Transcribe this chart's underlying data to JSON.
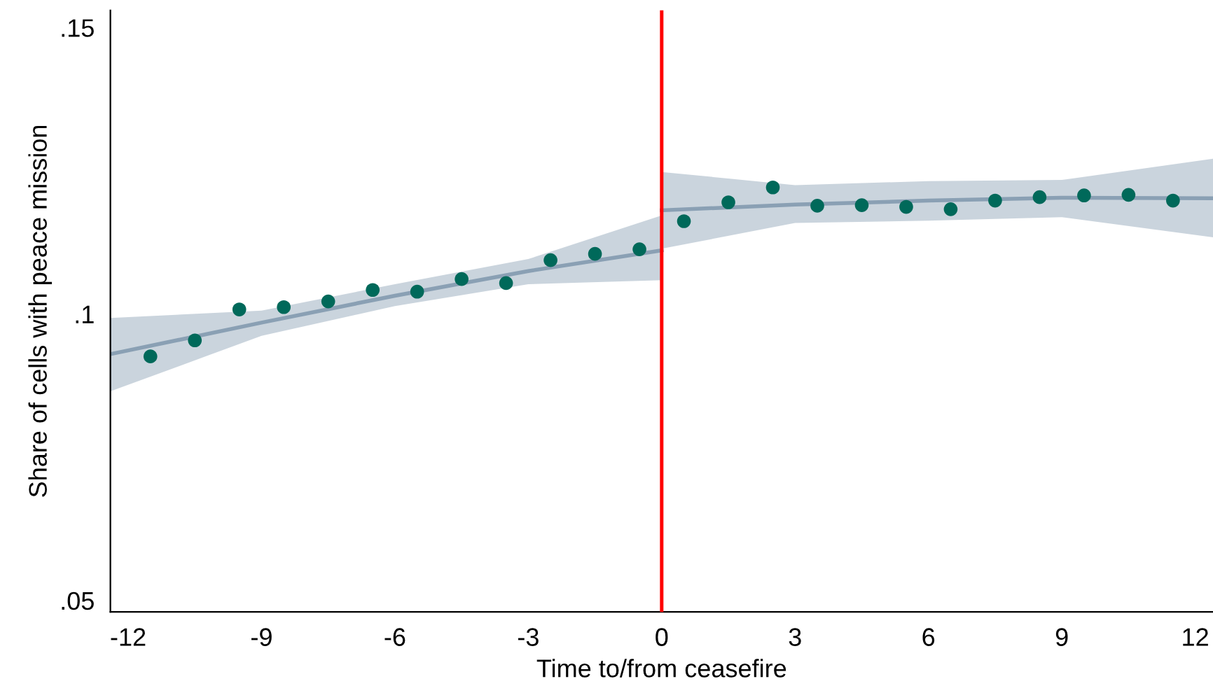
{
  "chart_data": {
    "type": "scatter",
    "xlabel": "Time to/from ceasefire",
    "ylabel": "Share of cells with peace mission",
    "xlim": [
      -12.4,
      12.4
    ],
    "ylim": [
      0.048,
      0.153
    ],
    "xticks": [
      -12,
      -9,
      -6,
      -3,
      0,
      3,
      6,
      9,
      12
    ],
    "yticks": [
      {
        "value": 0.05,
        "label": ".05"
      },
      {
        "value": 0.1,
        "label": ".1"
      },
      {
        "value": 0.15,
        "label": ".15"
      }
    ],
    "grid": false,
    "legend": false,
    "ref_lines": [
      {
        "axis": "x",
        "value": 0,
        "color": "#ff0000",
        "line_style": "solid"
      }
    ],
    "series": [
      {
        "type": "line",
        "color": "#8aa0b4",
        "marker": "none",
        "x": [
          -12.4,
          -9,
          -6,
          -3,
          0
        ],
        "values": [
          0.093,
          0.0985,
          0.1032,
          0.1075,
          0.1111
        ],
        "lower": [
          0.0865,
          0.0962,
          0.1014,
          0.1052,
          0.1059
        ],
        "upper": [
          0.0993,
          0.1006,
          0.1052,
          0.1096,
          0.1172
        ]
      },
      {
        "type": "line",
        "color": "#8aa0b4",
        "marker": "none",
        "x": [
          0,
          3,
          6,
          9,
          12.4
        ],
        "values": [
          0.1181,
          0.1191,
          0.1198,
          0.1203,
          0.1202
        ],
        "lower": [
          0.1114,
          0.1159,
          0.1163,
          0.1169,
          0.1134
        ],
        "upper": [
          0.1248,
          0.1225,
          0.1232,
          0.1234,
          0.1271
        ]
      },
      {
        "type": "scatter",
        "color": "#00695a",
        "marker": "circle",
        "x": [
          -11.5,
          -10.5,
          -9.5,
          -8.5,
          -7.5,
          -6.5,
          -5.5,
          -4.5,
          -3.5,
          -2.5,
          -1.5,
          -0.5,
          0.5,
          1.5,
          2.5,
          3.5,
          4.5,
          5.5,
          6.5,
          7.5,
          8.5,
          9.5,
          10.5,
          11.5
        ],
        "values": [
          0.0926,
          0.0954,
          0.1008,
          0.1012,
          0.1022,
          0.1042,
          0.1039,
          0.1061,
          0.1054,
          0.1094,
          0.1105,
          0.1113,
          0.1162,
          0.1195,
          0.1221,
          0.1189,
          0.119,
          0.1187,
          0.1183,
          0.1198,
          0.1204,
          0.1207,
          0.1208,
          0.1198
        ]
      }
    ]
  }
}
